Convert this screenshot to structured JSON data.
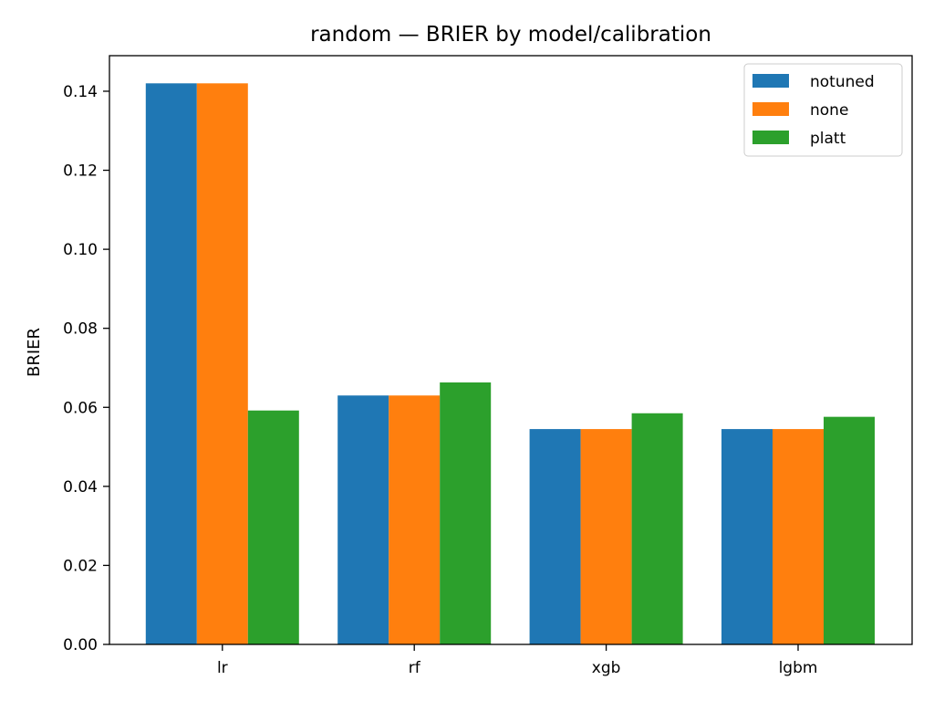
{
  "chart_data": {
    "type": "bar",
    "title": "random — BRIER by model/calibration",
    "xlabel": "",
    "ylabel": "BRIER",
    "categories": [
      "lr",
      "rf",
      "xgb",
      "lgbm"
    ],
    "series": [
      {
        "name": "notuned",
        "color": "#1f77b4",
        "values": [
          0.142,
          0.063,
          0.0545,
          0.0545
        ]
      },
      {
        "name": "none",
        "color": "#ff7f0e",
        "values": [
          0.142,
          0.063,
          0.0545,
          0.0545
        ]
      },
      {
        "name": "platt",
        "color": "#2ca02c",
        "values": [
          0.0592,
          0.0663,
          0.0585,
          0.0576
        ]
      }
    ],
    "ylim": [
      0,
      0.149
    ],
    "yticks": [
      0.0,
      0.02,
      0.04,
      0.06,
      0.08,
      0.1,
      0.12,
      0.14
    ],
    "ytick_labels": [
      "0.00",
      "0.02",
      "0.04",
      "0.06",
      "0.08",
      "0.10",
      "0.12",
      "0.14"
    ],
    "grid": false,
    "legend_position": "top-right"
  }
}
